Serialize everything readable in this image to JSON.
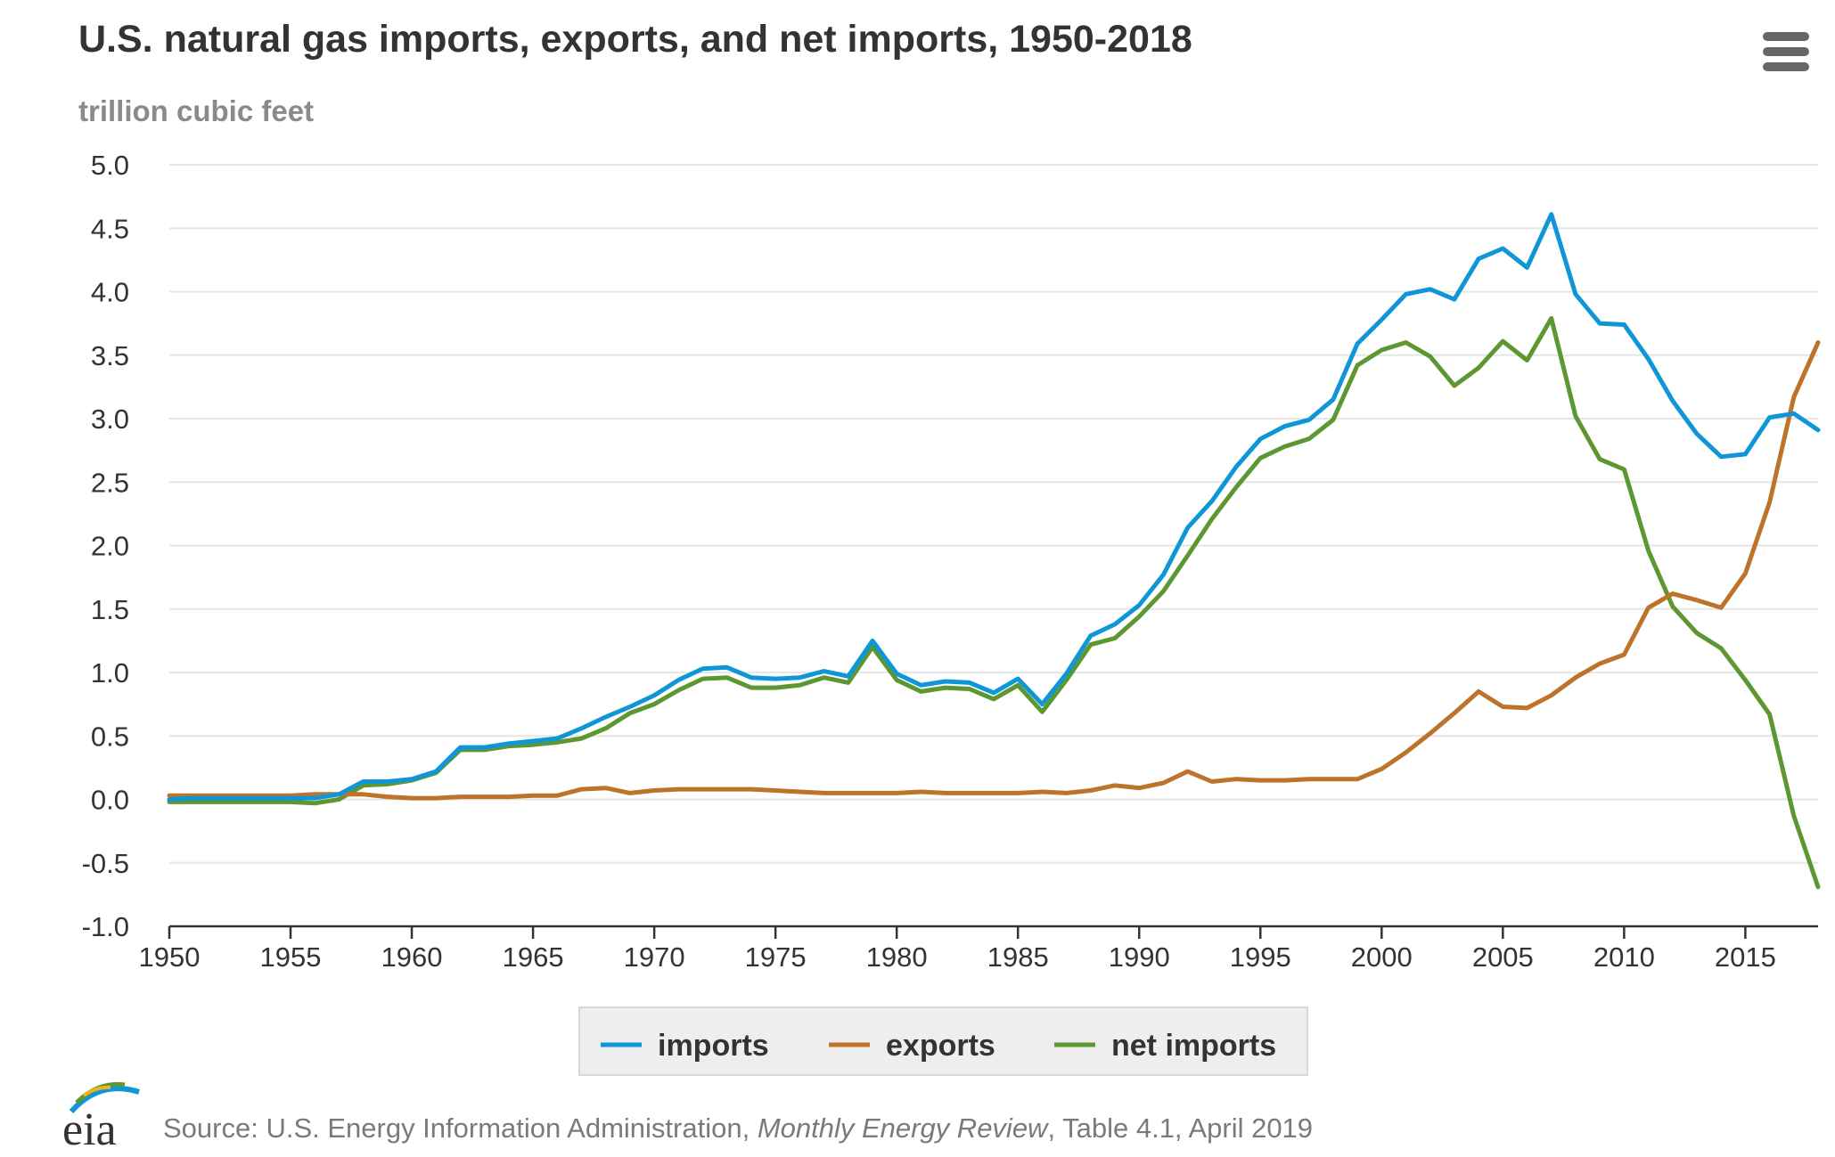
{
  "colors": {
    "imports": "#0f96d7",
    "exports": "#bd732a",
    "net_imports": "#5d9732",
    "text": "#333333",
    "muted": "#8a8a8a",
    "grid": "#e6e6e6"
  },
  "chart_data": {
    "type": "line",
    "title": "U.S. natural gas imports, exports, and net imports, 1950-2018",
    "units_label": "trillion cubic feet",
    "x": [
      1950,
      1951,
      1952,
      1953,
      1954,
      1955,
      1956,
      1957,
      1958,
      1959,
      1960,
      1961,
      1962,
      1963,
      1964,
      1965,
      1966,
      1967,
      1968,
      1969,
      1970,
      1971,
      1972,
      1973,
      1974,
      1975,
      1976,
      1977,
      1978,
      1979,
      1980,
      1981,
      1982,
      1983,
      1984,
      1985,
      1986,
      1987,
      1988,
      1989,
      1990,
      1991,
      1992,
      1993,
      1994,
      1995,
      1996,
      1997,
      1998,
      1999,
      2000,
      2001,
      2002,
      2003,
      2004,
      2005,
      2006,
      2007,
      2008,
      2009,
      2010,
      2011,
      2012,
      2013,
      2014,
      2015,
      2016,
      2017,
      2018
    ],
    "xlim": [
      1950,
      2018
    ],
    "ylim": [
      -1.0,
      5.0
    ],
    "y_ticks": [
      "5.0",
      "4.5",
      "4.0",
      "3.5",
      "3.0",
      "2.5",
      "2.0",
      "1.5",
      "1.0",
      "0.5",
      "0.0",
      "-0.5",
      "-1.0"
    ],
    "x_ticks": [
      "1950",
      "1955",
      "1960",
      "1965",
      "1970",
      "1975",
      "1980",
      "1985",
      "1990",
      "1995",
      "2000",
      "2005",
      "2010",
      "2015"
    ],
    "grid": "horizontal",
    "legend_position": "bottom-center",
    "series": [
      {
        "name": "imports",
        "key": "imports",
        "values": [
          0.0,
          0.01,
          0.01,
          0.01,
          0.01,
          0.01,
          0.01,
          0.04,
          0.14,
          0.14,
          0.16,
          0.22,
          0.41,
          0.41,
          0.44,
          0.46,
          0.48,
          0.56,
          0.65,
          0.73,
          0.82,
          0.94,
          1.03,
          1.04,
          0.96,
          0.95,
          0.96,
          1.01,
          0.97,
          1.25,
          0.99,
          0.9,
          0.93,
          0.92,
          0.84,
          0.95,
          0.75,
          0.99,
          1.29,
          1.38,
          1.53,
          1.77,
          2.14,
          2.35,
          2.62,
          2.84,
          2.94,
          2.99,
          3.15,
          3.59,
          3.78,
          3.98,
          4.02,
          3.94,
          4.26,
          4.34,
          4.19,
          4.61,
          3.98,
          3.75,
          3.74,
          3.47,
          3.14,
          2.88,
          2.7,
          2.72,
          3.01,
          3.04,
          2.91
        ]
      },
      {
        "name": "exports",
        "key": "exports",
        "values": [
          0.03,
          0.03,
          0.03,
          0.03,
          0.03,
          0.03,
          0.04,
          0.04,
          0.04,
          0.02,
          0.01,
          0.01,
          0.02,
          0.02,
          0.02,
          0.03,
          0.03,
          0.08,
          0.09,
          0.05,
          0.07,
          0.08,
          0.08,
          0.08,
          0.08,
          0.07,
          0.06,
          0.05,
          0.05,
          0.05,
          0.05,
          0.06,
          0.05,
          0.05,
          0.05,
          0.05,
          0.06,
          0.05,
          0.07,
          0.11,
          0.09,
          0.13,
          0.22,
          0.14,
          0.16,
          0.15,
          0.15,
          0.16,
          0.16,
          0.16,
          0.24,
          0.37,
          0.52,
          0.68,
          0.85,
          0.73,
          0.72,
          0.82,
          0.96,
          1.07,
          1.14,
          1.51,
          1.62,
          1.57,
          1.51,
          1.78,
          2.34,
          3.17,
          3.6
        ]
      },
      {
        "name": "net imports",
        "key": "net_imports",
        "values": [
          -0.02,
          -0.02,
          -0.02,
          -0.02,
          -0.02,
          -0.02,
          -0.03,
          0.0,
          0.11,
          0.12,
          0.15,
          0.21,
          0.39,
          0.39,
          0.42,
          0.43,
          0.45,
          0.48,
          0.56,
          0.68,
          0.75,
          0.86,
          0.95,
          0.96,
          0.88,
          0.88,
          0.9,
          0.96,
          0.92,
          1.2,
          0.94,
          0.85,
          0.88,
          0.87,
          0.79,
          0.9,
          0.69,
          0.94,
          1.22,
          1.27,
          1.44,
          1.64,
          1.92,
          2.21,
          2.46,
          2.69,
          2.78,
          2.84,
          2.99,
          3.42,
          3.54,
          3.6,
          3.49,
          3.26,
          3.4,
          3.61,
          3.46,
          3.79,
          3.02,
          2.68,
          2.6,
          1.96,
          1.52,
          1.31,
          1.19,
          0.94,
          0.67,
          -0.13,
          -0.69
        ]
      }
    ]
  },
  "legend": {
    "items": [
      {
        "label": "imports",
        "key": "imports"
      },
      {
        "label": "exports",
        "key": "exports"
      },
      {
        "label": "net imports",
        "key": "net_imports"
      }
    ]
  },
  "footer": {
    "logo_text": "eia",
    "source_prefix": "Source: U.S. Energy Information Administration, ",
    "source_italic": "Monthly Energy Review",
    "source_suffix": ", Table 4.1, April 2019"
  },
  "menu_icon": "hamburger-menu-icon"
}
